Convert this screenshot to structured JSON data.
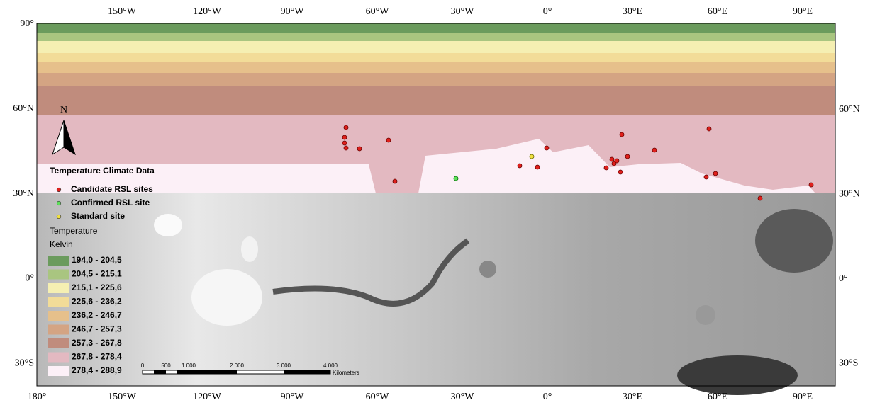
{
  "axes": {
    "top_labels": [
      "150°W",
      "120°W",
      "90°W",
      "60°W",
      "30°W",
      "0°",
      "30°E",
      "60°E",
      "90°E"
    ],
    "bottom_labels": [
      "180°",
      "150°W",
      "120°W",
      "90°W",
      "60°W",
      "30°W",
      "0°",
      "30°E",
      "60°E",
      "90°E"
    ],
    "left_labels": [
      "90°",
      "60°N",
      "30°N",
      "0°",
      "30°S"
    ],
    "right_labels": [
      "60°N",
      "30°N",
      "0°",
      "30°S"
    ]
  },
  "north_arrow": "N",
  "legend": {
    "title": "Temperature Climate Data",
    "sites": [
      {
        "label": "Candidate RSL sites",
        "color": "#e0201c"
      },
      {
        "label": "Confirmed RSL site",
        "color": "#5ee05a"
      },
      {
        "label": "Standard site",
        "color": "#f0e040"
      }
    ],
    "layer_title": "Temperature",
    "unit": "Kelvin",
    "classes": [
      {
        "label": "194,0 - 204,5",
        "color": "#6b9b5d"
      },
      {
        "label": "204,5 - 215,1",
        "color": "#a9c580"
      },
      {
        "label": "215,1 - 225,6",
        "color": "#f5efb2"
      },
      {
        "label": "225,6 - 236,2",
        "color": "#f2dc98"
      },
      {
        "label": "236,2 - 246,7",
        "color": "#e6c08b"
      },
      {
        "label": "246,7 - 257,3",
        "color": "#d4a483"
      },
      {
        "label": "257,3 - 267,8",
        "color": "#c08c7d"
      },
      {
        "label": "267,8 - 278,4",
        "color": "#e3b9c1"
      },
      {
        "label": "278,4 - 288,9",
        "color": "#fcf0f7"
      }
    ]
  },
  "scale_bar": {
    "ticks": [
      "0",
      "500",
      "1 000",
      "2 000",
      "3 000",
      "4 000"
    ],
    "unit": "Kilometers"
  }
}
